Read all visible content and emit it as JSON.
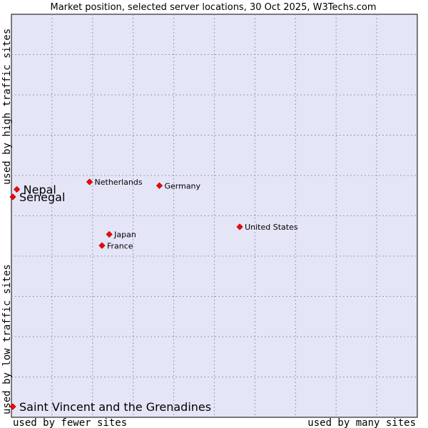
{
  "chart_data": {
    "type": "scatter",
    "title": "Market position, selected server locations, 30 Oct 2025, W3Techs.com",
    "xlabel_left": "used by fewer sites",
    "xlabel_right": "used by many sites",
    "ylabel_top": "used by high traffic sites",
    "ylabel_bottom": "used by low traffic sites",
    "xlim": [
      0,
      100
    ],
    "ylim": [
      0,
      100
    ],
    "grid": true,
    "marker_color": "#ff0000",
    "plot_background": "#e5e5f8",
    "grid_color": "#9b9bb3",
    "points": [
      {
        "name": "Netherlands",
        "x": 19.1,
        "y": 60.0,
        "emphasis": false
      },
      {
        "name": "Germany",
        "x": 36.5,
        "y": 59.0,
        "emphasis": false
      },
      {
        "name": "Nepal",
        "x": 1.0,
        "y": 58.0,
        "emphasis": true
      },
      {
        "name": "Senegal",
        "x": 0.0,
        "y": 56.0,
        "emphasis": true
      },
      {
        "name": "United States",
        "x": 56.5,
        "y": 48.0,
        "emphasis": false
      },
      {
        "name": "Japan",
        "x": 24.0,
        "y": 46.0,
        "emphasis": false
      },
      {
        "name": "France",
        "x": 22.2,
        "y": 43.0,
        "emphasis": false
      },
      {
        "name": "Saint Vincent and the Grenadines",
        "x": 0.0,
        "y": 0.0,
        "emphasis": true
      }
    ]
  }
}
